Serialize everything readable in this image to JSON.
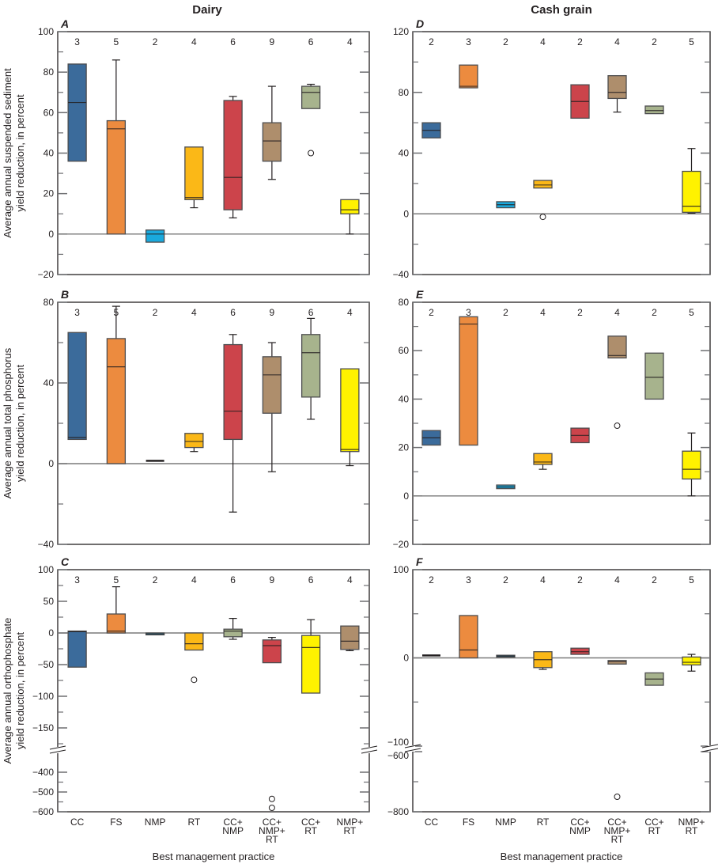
{
  "column_titles": [
    "Dairy",
    "Cash grain"
  ],
  "x_axis_title": "Best management practice",
  "categories": [
    [
      "CC"
    ],
    [
      "FS"
    ],
    [
      "NMP"
    ],
    [
      "RT"
    ],
    [
      "CC+",
      "NMP"
    ],
    [
      "CC+",
      "NMP+",
      "RT"
    ],
    [
      "CC+",
      "RT"
    ],
    [
      "NMP+",
      "RT"
    ]
  ],
  "colors": {
    "blue": "#3b6b9b",
    "orange": "#ec8b3f",
    "cyan": "#1aa9dd",
    "amber": "#fbb817",
    "red": "#cc444b",
    "tan": "#ae8e6c",
    "sage": "#a7b38d",
    "yellow": "#fff200",
    "axis": "#231f20",
    "zero_line": "#7a7a7a"
  },
  "chart_data": [
    {
      "panel": "A",
      "type": "box",
      "column": "Dairy",
      "ylabel": [
        "Average annual suspended sediment",
        "yield reduction, in percent"
      ],
      "ylim": [
        -20,
        100
      ],
      "ticks": [
        -20,
        0,
        20,
        40,
        60,
        80,
        100
      ],
      "minor_ticks": [
        -10,
        10,
        30,
        50,
        70,
        90
      ],
      "counts": [
        "3",
        "5",
        "2",
        "4",
        "6",
        "9",
        "6",
        "4"
      ],
      "boxes": [
        {
          "color": "blue",
          "q1": 36,
          "median": 65,
          "q3": 84
        },
        {
          "color": "orange",
          "q1": 0,
          "median": 52,
          "q3": 56,
          "whisker_high": 86
        },
        {
          "color": "cyan",
          "q1": -4,
          "median": 0,
          "q3": 2
        },
        {
          "color": "amber",
          "q1": 17,
          "median": 18,
          "q3": 43,
          "whisker_low": 13
        },
        {
          "color": "red",
          "q1": 12,
          "median": 28,
          "q3": 66,
          "whisker_low": 8,
          "whisker_high": 68
        },
        {
          "color": "tan",
          "q1": 36,
          "median": 46,
          "q3": 55,
          "whisker_low": 27,
          "whisker_high": 73
        },
        {
          "color": "sage",
          "q1": 62,
          "median": 70,
          "q3": 73,
          "whisker_high": 74,
          "outliers": [
            40
          ]
        },
        {
          "color": "yellow",
          "q1": 10,
          "median": 12,
          "q3": 17,
          "whisker_low": 0
        }
      ]
    },
    {
      "panel": "B",
      "type": "box",
      "column": "Dairy",
      "ylabel": [
        "Average annual total phosphorus",
        "yield reduction, in percent"
      ],
      "ylim": [
        -40,
        80
      ],
      "ticks": [
        -40,
        0,
        40,
        80
      ],
      "minor_ticks": [
        -20,
        20,
        60
      ],
      "counts": [
        "3",
        "5",
        "2",
        "4",
        "6",
        "9",
        "6",
        "4"
      ],
      "boxes": [
        {
          "color": "blue",
          "q1": 12,
          "median": 13,
          "q3": 65
        },
        {
          "color": "orange",
          "q1": 0,
          "median": 48,
          "q3": 62,
          "whisker_high": 78
        },
        {
          "color": "cyan",
          "q1": 1,
          "median": 1.2,
          "q3": 1.5
        },
        {
          "color": "amber",
          "q1": 8,
          "median": 11,
          "q3": 15,
          "whisker_low": 6
        },
        {
          "color": "red",
          "q1": 12,
          "median": 26,
          "q3": 59,
          "whisker_low": -24,
          "whisker_high": 64
        },
        {
          "color": "tan",
          "q1": 25,
          "median": 44,
          "q3": 53,
          "whisker_low": -4,
          "whisker_high": 60
        },
        {
          "color": "sage",
          "q1": 33,
          "median": 55,
          "q3": 64,
          "whisker_low": 22,
          "whisker_high": 72
        },
        {
          "color": "yellow",
          "q1": 6,
          "median": 7,
          "q3": 47,
          "whisker_low": -1
        }
      ]
    },
    {
      "panel": "C",
      "type": "box",
      "column": "Dairy",
      "ylabel": [
        "Average annual orthophosphate",
        "yield reduction, in percent"
      ],
      "ylim_upper": [
        -175,
        100
      ],
      "ylim_lower": [
        -600,
        -350
      ],
      "ticks_upper": [
        -150,
        -100,
        -50,
        0,
        50,
        100
      ],
      "minor_ticks_upper": [
        -175,
        -125,
        -75,
        -25,
        25,
        75
      ],
      "ticks_lower": [
        -600,
        -500,
        -400
      ],
      "minor_ticks_lower": [
        -550,
        -450
      ],
      "counts": [
        "3",
        "5",
        "2",
        "4",
        "6",
        "9",
        "6",
        "4"
      ],
      "boxes": [
        {
          "color": "blue",
          "q1": -54,
          "median": 2,
          "q3": 3
        },
        {
          "color": "orange",
          "q1": 0,
          "median": 3,
          "q3": 30,
          "whisker_high": 73
        },
        {
          "color": "cyan",
          "q1": -3,
          "median": -1.5,
          "q3": 0
        },
        {
          "color": "amber",
          "q1": -27,
          "median": -17,
          "q3": 0,
          "outliers": [
            -74
          ]
        },
        {
          "color": "sage",
          "q1": -6,
          "median": 3,
          "q3": 6,
          "whisker_low": -10,
          "whisker_high": 23
        },
        {
          "color": "red",
          "q1": -47,
          "median": -20,
          "q3": -11,
          "whisker_high": -7,
          "outliers": [
            -535,
            -580
          ]
        },
        {
          "color": "yellow",
          "q1": -95,
          "median": -23,
          "q3": -4,
          "whisker_high": 21
        },
        {
          "color": "tan",
          "q1": -26,
          "median": -13,
          "q3": 11,
          "whisker_low": -28
        }
      ]
    },
    {
      "panel": "D",
      "type": "box",
      "column": "Cash grain",
      "ylim": [
        -40,
        120
      ],
      "ticks": [
        -40,
        0,
        40,
        80,
        120
      ],
      "minor_ticks": [
        -20,
        20,
        60,
        100
      ],
      "counts": [
        "2",
        "3",
        "2",
        "4",
        "2",
        "4",
        "2",
        "5"
      ],
      "boxes": [
        {
          "color": "blue",
          "q1": 50,
          "median": 55,
          "q3": 60
        },
        {
          "color": "orange",
          "q1": 83,
          "median": 84,
          "q3": 98
        },
        {
          "color": "cyan",
          "q1": 4,
          "median": 6,
          "q3": 8
        },
        {
          "color": "amber",
          "q1": 17,
          "median": 19,
          "q3": 22,
          "outliers": [
            -2
          ]
        },
        {
          "color": "red",
          "q1": 63,
          "median": 74,
          "q3": 85
        },
        {
          "color": "tan",
          "q1": 76,
          "median": 80,
          "q3": 91,
          "whisker_low": 67
        },
        {
          "color": "sage",
          "q1": 66,
          "median": 68,
          "q3": 71
        },
        {
          "color": "yellow",
          "q1": 1,
          "median": 5,
          "q3": 28,
          "whisker_low": 0.5,
          "whisker_high": 43
        }
      ]
    },
    {
      "panel": "E",
      "type": "box",
      "column": "Cash grain",
      "ylim": [
        -20,
        80
      ],
      "ticks": [
        -20,
        0,
        20,
        40,
        60,
        80
      ],
      "minor_ticks": [
        -10,
        10,
        30,
        50,
        70
      ],
      "counts": [
        "2",
        "3",
        "2",
        "4",
        "2",
        "4",
        "2",
        "5"
      ],
      "boxes": [
        {
          "color": "blue",
          "q1": 21,
          "median": 24,
          "q3": 27
        },
        {
          "color": "orange",
          "q1": 21,
          "median": 71,
          "q3": 74
        },
        {
          "color": "cyan",
          "q1": 3,
          "median": 3.7,
          "q3": 4.5
        },
        {
          "color": "amber",
          "q1": 13,
          "median": 14,
          "q3": 17.5,
          "whisker_low": 11
        },
        {
          "color": "red",
          "q1": 22,
          "median": 25,
          "q3": 28
        },
        {
          "color": "tan",
          "q1": 57,
          "median": 58,
          "q3": 66,
          "outliers": [
            29
          ]
        },
        {
          "color": "sage",
          "q1": 40,
          "median": 49,
          "q3": 59
        },
        {
          "color": "yellow",
          "q1": 7,
          "median": 11,
          "q3": 18.5,
          "whisker_low": 0,
          "whisker_high": 26
        }
      ]
    },
    {
      "panel": "F",
      "type": "box",
      "column": "Cash grain",
      "ylim_upper": [
        -100,
        100
      ],
      "ylim_lower": [
        -800,
        -600
      ],
      "ticks_upper": [
        -100,
        0,
        100
      ],
      "minor_ticks_upper": [
        -50,
        50
      ],
      "ticks_lower": [
        -800,
        -600
      ],
      "minor_ticks_lower": [
        -700
      ],
      "counts": [
        "2",
        "3",
        "2",
        "4",
        "2",
        "4",
        "2",
        "5"
      ],
      "boxes": [
        {
          "color": "blue",
          "q1": 3,
          "median": 3,
          "q3": 3
        },
        {
          "color": "orange",
          "q1": 0,
          "median": 9,
          "q3": 48
        },
        {
          "color": "cyan",
          "q1": 1,
          "median": 2,
          "q3": 3
        },
        {
          "color": "amber",
          "q1": -11,
          "median": -2,
          "q3": 7,
          "whisker_low": -13
        },
        {
          "color": "red",
          "q1": 4,
          "median": 7,
          "q3": 11
        },
        {
          "color": "tan",
          "q1": -7,
          "median": -4,
          "q3": -3,
          "outliers": [
            -750
          ]
        },
        {
          "color": "sage",
          "q1": -31,
          "median": -24,
          "q3": -17
        },
        {
          "color": "yellow",
          "q1": -8,
          "median": -5,
          "q3": 1,
          "whisker_low": -15,
          "whisker_high": 4
        }
      ]
    }
  ]
}
